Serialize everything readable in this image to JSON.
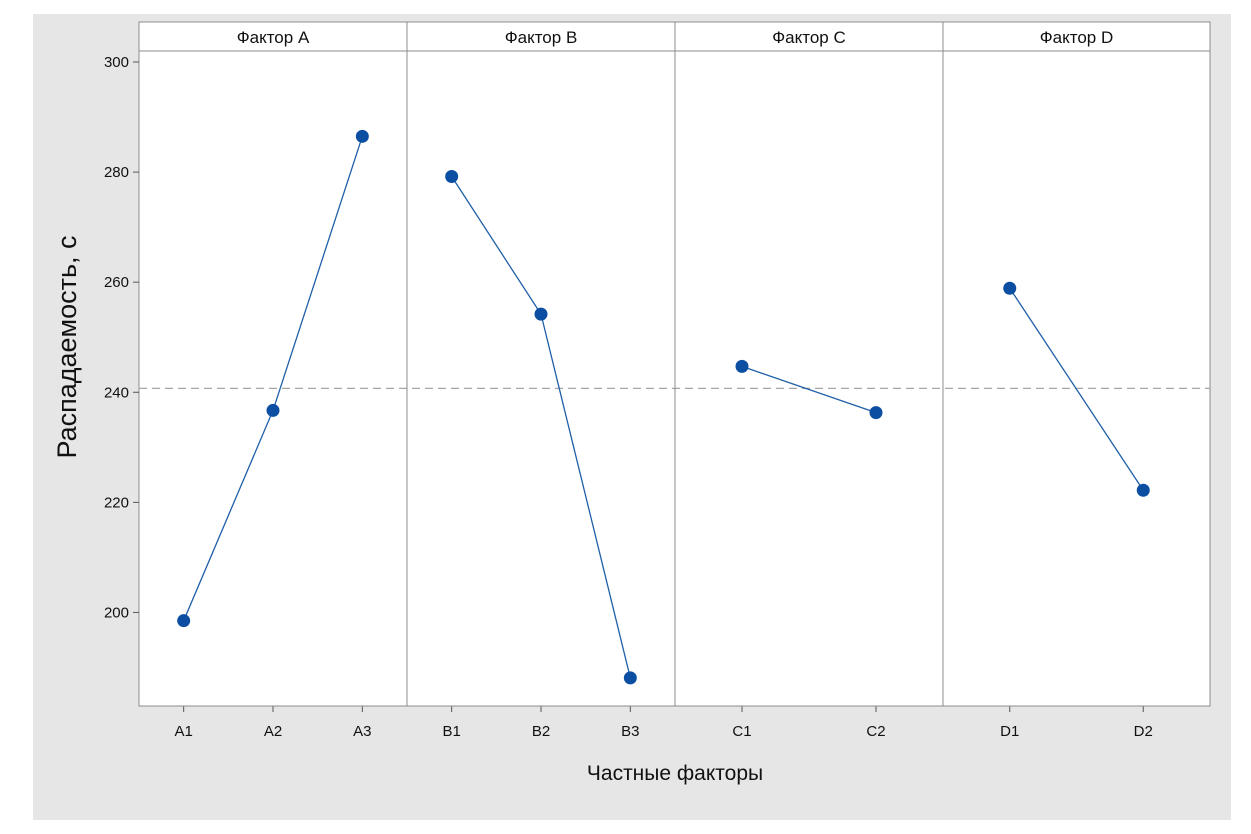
{
  "chart_data": {
    "type": "line",
    "title": "",
    "xlabel": "Частные факторы",
    "ylabel": "Распадаемость, с",
    "ylim": [
      183,
      302
    ],
    "yticks": [
      200,
      220,
      240,
      260,
      280,
      300
    ],
    "reference_line": 240.7,
    "grid": false,
    "panels": [
      {
        "label": "Фактор A",
        "categories": [
          "A1",
          "A2",
          "A3"
        ],
        "values": [
          198.5,
          236.7,
          286.5
        ]
      },
      {
        "label": "Фактор B",
        "categories": [
          "B1",
          "B2",
          "B3"
        ],
        "values": [
          279.2,
          254.2,
          188.1
        ]
      },
      {
        "label": "Фактор C",
        "categories": [
          "C1",
          "C2"
        ],
        "values": [
          244.7,
          236.3
        ]
      },
      {
        "label": "Фактор D",
        "categories": [
          "D1",
          "D2"
        ],
        "values": [
          258.9,
          222.2
        ]
      }
    ],
    "colors": {
      "series": "#1f5fa8",
      "point": "#0b4ea2",
      "reference": "#a6a6a6"
    }
  }
}
